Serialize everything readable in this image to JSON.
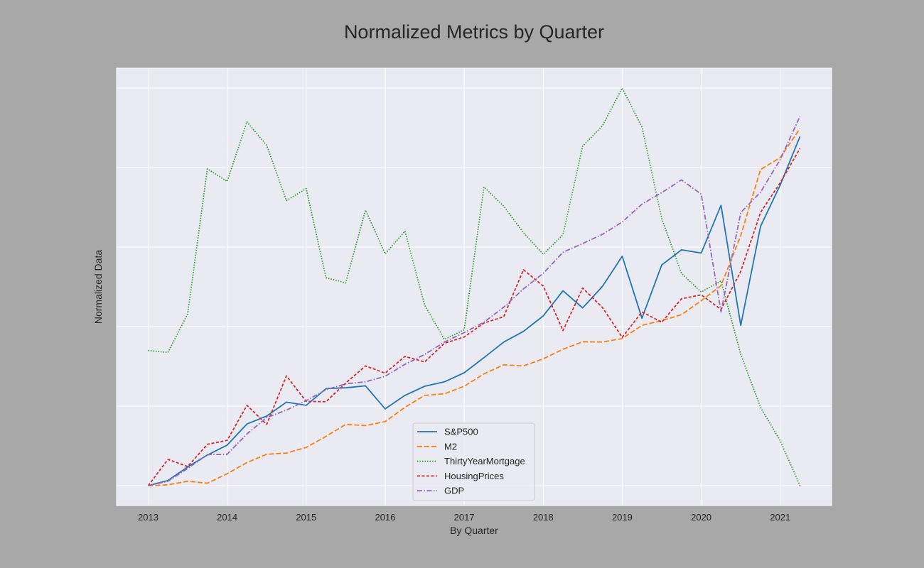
{
  "chart_data": {
    "type": "line",
    "title": "Normalized Metrics by Quarter",
    "xlabel": "By Quarter",
    "ylabel": "Normalized Data",
    "xlim": [
      2012.6,
      2021.65
    ],
    "ylim": [
      -0.05,
      1.05
    ],
    "x_ticks": [
      "2013",
      "2014",
      "2015",
      "2016",
      "2017",
      "2018",
      "2019",
      "2020",
      "2021"
    ],
    "y_tick_values": [
      0,
      0.2,
      0.4,
      0.6,
      0.8,
      1.0
    ],
    "y_tick_labels_shown": false,
    "grid": true,
    "legend_position": "lower center",
    "x": [
      2013.0,
      2013.25,
      2013.5,
      2013.75,
      2014.0,
      2014.25,
      2014.5,
      2014.75,
      2015.0,
      2015.25,
      2015.5,
      2015.75,
      2016.0,
      2016.25,
      2016.5,
      2016.75,
      2017.0,
      2017.25,
      2017.5,
      2017.75,
      2018.0,
      2018.25,
      2018.5,
      2018.75,
      2019.0,
      2019.25,
      2019.5,
      2019.75,
      2020.0,
      2020.25,
      2020.5,
      2020.75,
      2021.0,
      2021.25
    ],
    "series": [
      {
        "name": "S&P500",
        "color": "#1f77b4",
        "dash": "solid",
        "values": [
          0.0,
          0.013,
          0.047,
          0.077,
          0.102,
          0.155,
          0.175,
          0.21,
          0.202,
          0.244,
          0.246,
          0.251,
          0.193,
          0.227,
          0.25,
          0.261,
          0.284,
          0.322,
          0.361,
          0.388,
          0.427,
          0.49,
          0.447,
          0.501,
          0.577,
          0.421,
          0.555,
          0.593,
          0.585,
          0.705,
          0.403,
          0.652,
          0.756,
          0.878
        ]
      },
      {
        "name": "M2",
        "color": "#ff7f0e",
        "dash": "dashed",
        "values": [
          0.0,
          0.002,
          0.011,
          0.006,
          0.03,
          0.058,
          0.079,
          0.082,
          0.096,
          0.124,
          0.154,
          0.151,
          0.161,
          0.197,
          0.227,
          0.231,
          0.25,
          0.281,
          0.304,
          0.301,
          0.319,
          0.343,
          0.362,
          0.361,
          0.37,
          0.403,
          0.415,
          0.43,
          0.465,
          0.503,
          0.629,
          0.795,
          0.825,
          0.898
        ]
      },
      {
        "name": "ThirtyYearMortgage",
        "color": "#2ca02c",
        "dash": "dotted",
        "values": [
          0.34,
          0.335,
          0.432,
          0.797,
          0.765,
          0.915,
          0.856,
          0.717,
          0.747,
          0.523,
          0.51,
          0.693,
          0.583,
          0.64,
          0.454,
          0.368,
          0.392,
          0.751,
          0.703,
          0.636,
          0.582,
          0.631,
          0.854,
          0.905,
          1.0,
          0.902,
          0.672,
          0.534,
          0.487,
          0.515,
          0.33,
          0.197,
          0.113,
          0.0
        ]
      },
      {
        "name": "HousingPrices",
        "color": "#d62728",
        "dash": "dashed-dense",
        "values": [
          0.0,
          0.066,
          0.048,
          0.104,
          0.114,
          0.202,
          0.154,
          0.276,
          0.212,
          0.211,
          0.258,
          0.301,
          0.283,
          0.325,
          0.311,
          0.358,
          0.374,
          0.409,
          0.425,
          0.543,
          0.502,
          0.39,
          0.497,
          0.448,
          0.373,
          0.437,
          0.411,
          0.47,
          0.48,
          0.443,
          0.539,
          0.687,
          0.762,
          0.848
        ]
      },
      {
        "name": "GDP",
        "color": "#9467bd",
        "dash": "dashdot",
        "values": [
          0.0,
          0.011,
          0.043,
          0.078,
          0.079,
          0.13,
          0.171,
          0.19,
          0.214,
          0.241,
          0.256,
          0.261,
          0.275,
          0.305,
          0.33,
          0.361,
          0.385,
          0.411,
          0.449,
          0.495,
          0.534,
          0.587,
          0.609,
          0.632,
          0.663,
          0.708,
          0.737,
          0.769,
          0.733,
          0.437,
          0.687,
          0.738,
          0.82,
          0.929
        ]
      }
    ]
  }
}
